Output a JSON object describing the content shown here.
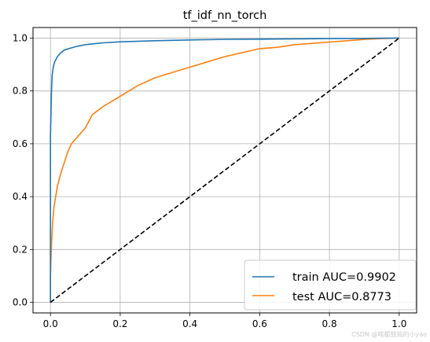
{
  "chart_data": {
    "type": "line",
    "title": "tf_idf_nn_torch",
    "xlabel": "",
    "ylabel": "",
    "xlim": [
      -0.05,
      1.05
    ],
    "ylim": [
      -0.04,
      1.04
    ],
    "xticks": [
      "0.0",
      "0.2",
      "0.4",
      "0.6",
      "0.8",
      "1.0"
    ],
    "yticks": [
      "0.0",
      "0.2",
      "0.4",
      "0.6",
      "0.8",
      "1.0"
    ],
    "grid": true,
    "legend_position": "lower-right",
    "series": [
      {
        "name": "train AUC=0.9902",
        "color": "#1f77b4",
        "style": "solid",
        "x": [
          0,
          0,
          0.003,
          0.005,
          0.008,
          0.012,
          0.02,
          0.03,
          0.04,
          0.06,
          0.08,
          0.1,
          0.15,
          0.2,
          0.3,
          0.4,
          0.5,
          0.6,
          0.7,
          0.8,
          0.9,
          1.0
        ],
        "y": [
          0,
          0.63,
          0.8,
          0.86,
          0.89,
          0.91,
          0.93,
          0.945,
          0.955,
          0.963,
          0.97,
          0.975,
          0.982,
          0.986,
          0.99,
          0.993,
          0.995,
          0.996,
          0.997,
          0.998,
          0.999,
          1.0
        ]
      },
      {
        "name": "test AUC=0.8773",
        "color": "#ff7f0e",
        "style": "solid",
        "x": [
          0,
          0,
          0.003,
          0.006,
          0.01,
          0.015,
          0.02,
          0.03,
          0.04,
          0.05,
          0.06,
          0.08,
          0.1,
          0.12,
          0.15,
          0.2,
          0.25,
          0.3,
          0.35,
          0.4,
          0.45,
          0.5,
          0.55,
          0.6,
          0.65,
          0.7,
          0.75,
          0.8,
          0.85,
          0.9,
          0.95,
          1.0
        ],
        "y": [
          0,
          0.1,
          0.22,
          0.3,
          0.36,
          0.4,
          0.44,
          0.49,
          0.53,
          0.57,
          0.6,
          0.63,
          0.66,
          0.71,
          0.74,
          0.78,
          0.82,
          0.85,
          0.87,
          0.89,
          0.91,
          0.93,
          0.945,
          0.96,
          0.965,
          0.975,
          0.98,
          0.985,
          0.99,
          0.995,
          0.998,
          1.0
        ]
      },
      {
        "name": "",
        "color": "#000000",
        "style": "dashed",
        "x": [
          0,
          1
        ],
        "y": [
          0,
          1
        ]
      }
    ],
    "legend": [
      {
        "label": "train AUC=0.9902",
        "color": "#1f77b4"
      },
      {
        "label": "test AUC=0.8773",
        "color": "#ff7f0e"
      }
    ]
  },
  "watermark": "CSDN @啥都鼓捣的小yao"
}
